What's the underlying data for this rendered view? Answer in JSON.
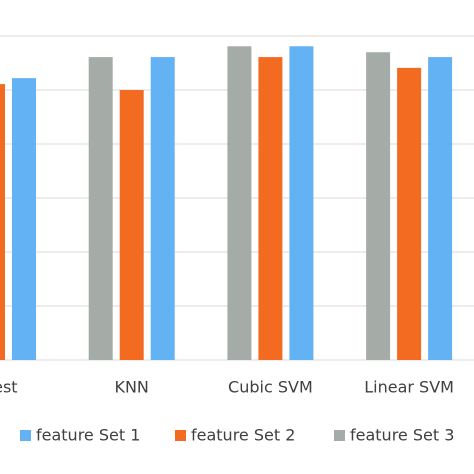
{
  "chart_data": {
    "type": "bar",
    "categories": [
      "Forest",
      "KNN",
      "Cubic SVM",
      "Linear SVM"
    ],
    "series": [
      {
        "name": "feature Set 1",
        "color": "#63b2f3",
        "values": [
          92.2,
          96.1,
          98.1,
          96.1
        ]
      },
      {
        "name": "feature Set 2",
        "color": "#f26b21",
        "values": [
          91.1,
          90,
          96.1,
          94.1
        ]
      },
      {
        "name": "feature Set 3",
        "color": "#a5aca7",
        "values": [
          null,
          96.1,
          98.1,
          97
        ]
      }
    ],
    "ylim": [
      40,
      106.67
    ],
    "yticks": [
      40,
      50,
      60,
      70,
      80,
      90,
      100
    ],
    "grid": true,
    "legend": "bottom"
  }
}
